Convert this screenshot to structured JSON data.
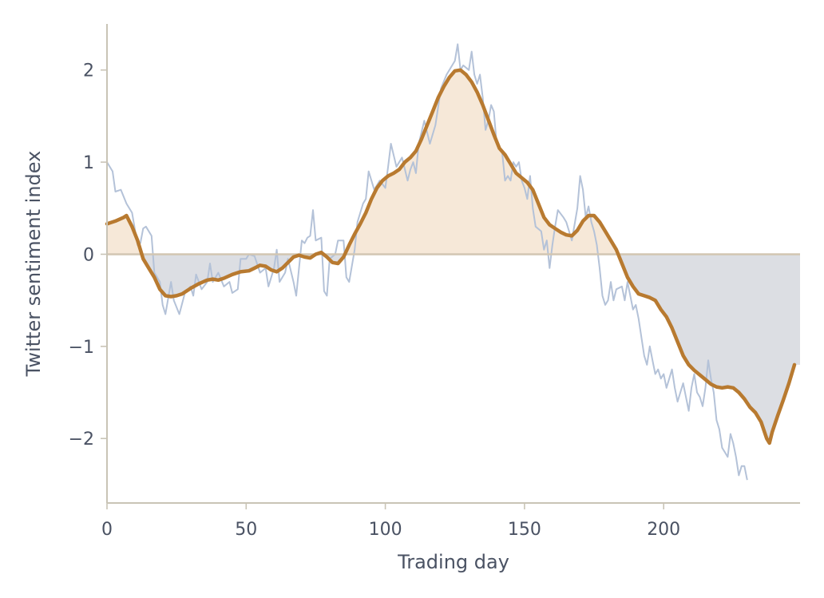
{
  "chart_data": {
    "type": "line",
    "title": "",
    "xlabel": "Trading day",
    "ylabel": "Twitter sentiment index",
    "xlim": [
      0,
      249
    ],
    "ylim": [
      -2.7,
      2.5
    ],
    "xticks": [
      0,
      50,
      100,
      150,
      200
    ],
    "yticks": [
      -2,
      -1,
      0,
      1,
      2
    ],
    "ytick_labels": [
      "−2",
      "−1",
      "0",
      "1",
      "2"
    ],
    "grid": false,
    "legend": "none",
    "baseline": 0,
    "colors": {
      "raw": "#b4c2d8",
      "smoothed": "#b87a30",
      "fill_positive": "#f6e8d8",
      "fill_negative": "#dcdee3",
      "baseline": "#d2c6b2",
      "axis": "#c9c4b6",
      "text": "#4a5263"
    },
    "series": [
      {
        "role": "raw",
        "points": [
          [
            0,
            1.0
          ],
          [
            2,
            0.9
          ],
          [
            3,
            0.68
          ],
          [
            5,
            0.7
          ],
          [
            7,
            0.55
          ],
          [
            9,
            0.45
          ],
          [
            11,
            0.1
          ],
          [
            12,
            0.12
          ],
          [
            13,
            0.28
          ],
          [
            14,
            0.3
          ],
          [
            16,
            0.2
          ],
          [
            17,
            -0.2
          ],
          [
            19,
            -0.3
          ],
          [
            20,
            -0.55
          ],
          [
            21,
            -0.65
          ],
          [
            23,
            -0.3
          ],
          [
            24,
            -0.5
          ],
          [
            26,
            -0.65
          ],
          [
            28,
            -0.42
          ],
          [
            30,
            -0.35
          ],
          [
            31,
            -0.45
          ],
          [
            32,
            -0.22
          ],
          [
            34,
            -0.38
          ],
          [
            36,
            -0.3
          ],
          [
            37,
            -0.1
          ],
          [
            38,
            -0.3
          ],
          [
            40,
            -0.2
          ],
          [
            42,
            -0.35
          ],
          [
            44,
            -0.3
          ],
          [
            45,
            -0.42
          ],
          [
            47,
            -0.38
          ],
          [
            48,
            -0.05
          ],
          [
            50,
            -0.05
          ],
          [
            51,
            0.0
          ],
          [
            53,
            -0.02
          ],
          [
            55,
            -0.2
          ],
          [
            57,
            -0.15
          ],
          [
            58,
            -0.35
          ],
          [
            60,
            -0.15
          ],
          [
            61,
            0.05
          ],
          [
            62,
            -0.3
          ],
          [
            64,
            -0.2
          ],
          [
            65,
            -0.05
          ],
          [
            67,
            -0.3
          ],
          [
            68,
            -0.45
          ],
          [
            70,
            0.15
          ],
          [
            71,
            0.12
          ],
          [
            72,
            0.18
          ],
          [
            73,
            0.2
          ],
          [
            74,
            0.48
          ],
          [
            75,
            0.15
          ],
          [
            77,
            0.18
          ],
          [
            78,
            -0.4
          ],
          [
            79,
            -0.45
          ],
          [
            80,
            -0.05
          ],
          [
            82,
            0.0
          ],
          [
            83,
            0.15
          ],
          [
            85,
            0.15
          ],
          [
            86,
            -0.25
          ],
          [
            87,
            -0.3
          ],
          [
            89,
            0.05
          ],
          [
            90,
            0.35
          ],
          [
            92,
            0.55
          ],
          [
            93,
            0.6
          ],
          [
            94,
            0.9
          ],
          [
            96,
            0.7
          ],
          [
            98,
            0.8
          ],
          [
            100,
            0.72
          ],
          [
            101,
            0.95
          ],
          [
            102,
            1.2
          ],
          [
            104,
            0.95
          ],
          [
            106,
            1.05
          ],
          [
            108,
            0.8
          ],
          [
            109,
            0.92
          ],
          [
            110,
            1.0
          ],
          [
            111,
            0.88
          ],
          [
            112,
            1.2
          ],
          [
            114,
            1.45
          ],
          [
            116,
            1.2
          ],
          [
            118,
            1.4
          ],
          [
            120,
            1.8
          ],
          [
            122,
            1.95
          ],
          [
            124,
            2.05
          ],
          [
            125,
            2.1
          ],
          [
            126,
            2.28
          ],
          [
            127,
            2.0
          ],
          [
            128,
            2.05
          ],
          [
            130,
            2.0
          ],
          [
            131,
            2.2
          ],
          [
            132,
            1.95
          ],
          [
            133,
            1.85
          ],
          [
            134,
            1.95
          ],
          [
            135,
            1.7
          ],
          [
            136,
            1.35
          ],
          [
            137,
            1.45
          ],
          [
            138,
            1.62
          ],
          [
            139,
            1.55
          ],
          [
            140,
            1.2
          ],
          [
            141,
            1.15
          ],
          [
            142,
            1.1
          ],
          [
            143,
            0.8
          ],
          [
            144,
            0.85
          ],
          [
            145,
            0.8
          ],
          [
            146,
            1.0
          ],
          [
            147,
            0.95
          ],
          [
            148,
            1.0
          ],
          [
            149,
            0.8
          ],
          [
            150,
            0.72
          ],
          [
            151,
            0.6
          ],
          [
            152,
            0.85
          ],
          [
            153,
            0.5
          ],
          [
            154,
            0.3
          ],
          [
            156,
            0.25
          ],
          [
            157,
            0.05
          ],
          [
            158,
            0.15
          ],
          [
            159,
            -0.15
          ],
          [
            160,
            0.1
          ],
          [
            161,
            0.3
          ],
          [
            162,
            0.48
          ],
          [
            164,
            0.4
          ],
          [
            165,
            0.35
          ],
          [
            166,
            0.25
          ],
          [
            167,
            0.15
          ],
          [
            169,
            0.5
          ],
          [
            170,
            0.85
          ],
          [
            171,
            0.7
          ],
          [
            172,
            0.4
          ],
          [
            173,
            0.52
          ],
          [
            174,
            0.35
          ],
          [
            175,
            0.25
          ],
          [
            176,
            0.1
          ],
          [
            177,
            -0.15
          ],
          [
            178,
            -0.45
          ],
          [
            179,
            -0.55
          ],
          [
            180,
            -0.5
          ],
          [
            181,
            -0.3
          ],
          [
            182,
            -0.5
          ],
          [
            183,
            -0.38
          ],
          [
            185,
            -0.35
          ],
          [
            186,
            -0.5
          ],
          [
            187,
            -0.3
          ],
          [
            188,
            -0.45
          ],
          [
            189,
            -0.6
          ],
          [
            190,
            -0.55
          ],
          [
            191,
            -0.7
          ],
          [
            192,
            -0.9
          ],
          [
            193,
            -1.1
          ],
          [
            194,
            -1.2
          ],
          [
            195,
            -1.0
          ],
          [
            196,
            -1.15
          ],
          [
            197,
            -1.3
          ],
          [
            198,
            -1.25
          ],
          [
            199,
            -1.35
          ],
          [
            200,
            -1.3
          ],
          [
            201,
            -1.45
          ],
          [
            202,
            -1.35
          ],
          [
            203,
            -1.25
          ],
          [
            204,
            -1.45
          ],
          [
            205,
            -1.6
          ],
          [
            206,
            -1.5
          ],
          [
            207,
            -1.4
          ],
          [
            208,
            -1.55
          ],
          [
            209,
            -1.7
          ],
          [
            210,
            -1.45
          ],
          [
            211,
            -1.3
          ],
          [
            212,
            -1.5
          ],
          [
            213,
            -1.55
          ],
          [
            214,
            -1.65
          ],
          [
            215,
            -1.45
          ],
          [
            216,
            -1.15
          ],
          [
            217,
            -1.35
          ],
          [
            218,
            -1.5
          ],
          [
            219,
            -1.8
          ],
          [
            220,
            -1.9
          ],
          [
            221,
            -2.1
          ],
          [
            222,
            -2.15
          ],
          [
            223,
            -2.2
          ],
          [
            224,
            -1.95
          ],
          [
            225,
            -2.05
          ],
          [
            226,
            -2.2
          ],
          [
            227,
            -2.4
          ],
          [
            228,
            -2.3
          ],
          [
            229,
            -2.3
          ],
          [
            230,
            -2.45
          ]
        ]
      },
      {
        "role": "smoothed",
        "points": [
          [
            0,
            0.33
          ],
          [
            3,
            0.36
          ],
          [
            6,
            0.4
          ],
          [
            7,
            0.42
          ],
          [
            9,
            0.3
          ],
          [
            11,
            0.15
          ],
          [
            13,
            -0.05
          ],
          [
            15,
            -0.15
          ],
          [
            17,
            -0.25
          ],
          [
            19,
            -0.38
          ],
          [
            21,
            -0.45
          ],
          [
            23,
            -0.46
          ],
          [
            25,
            -0.45
          ],
          [
            27,
            -0.43
          ],
          [
            30,
            -0.37
          ],
          [
            33,
            -0.32
          ],
          [
            36,
            -0.28
          ],
          [
            38,
            -0.27
          ],
          [
            40,
            -0.28
          ],
          [
            42,
            -0.26
          ],
          [
            45,
            -0.22
          ],
          [
            48,
            -0.19
          ],
          [
            51,
            -0.18
          ],
          [
            53,
            -0.15
          ],
          [
            55,
            -0.12
          ],
          [
            57,
            -0.13
          ],
          [
            59,
            -0.17
          ],
          [
            61,
            -0.19
          ],
          [
            63,
            -0.15
          ],
          [
            65,
            -0.09
          ],
          [
            67,
            -0.03
          ],
          [
            69,
            -0.01
          ],
          [
            71,
            -0.03
          ],
          [
            73,
            -0.04
          ],
          [
            75,
            0.0
          ],
          [
            77,
            0.02
          ],
          [
            79,
            -0.03
          ],
          [
            81,
            -0.09
          ],
          [
            83,
            -0.1
          ],
          [
            85,
            -0.03
          ],
          [
            87,
            0.1
          ],
          [
            89,
            0.22
          ],
          [
            91,
            0.33
          ],
          [
            93,
            0.45
          ],
          [
            95,
            0.6
          ],
          [
            97,
            0.72
          ],
          [
            99,
            0.8
          ],
          [
            101,
            0.85
          ],
          [
            103,
            0.88
          ],
          [
            105,
            0.92
          ],
          [
            107,
            1.0
          ],
          [
            109,
            1.05
          ],
          [
            111,
            1.12
          ],
          [
            113,
            1.25
          ],
          [
            115,
            1.4
          ],
          [
            117,
            1.55
          ],
          [
            119,
            1.7
          ],
          [
            121,
            1.82
          ],
          [
            123,
            1.92
          ],
          [
            125,
            1.99
          ],
          [
            127,
            2.0
          ],
          [
            129,
            1.95
          ],
          [
            131,
            1.87
          ],
          [
            133,
            1.76
          ],
          [
            135,
            1.62
          ],
          [
            137,
            1.46
          ],
          [
            139,
            1.3
          ],
          [
            141,
            1.15
          ],
          [
            143,
            1.08
          ],
          [
            145,
            0.98
          ],
          [
            147,
            0.88
          ],
          [
            149,
            0.83
          ],
          [
            151,
            0.78
          ],
          [
            153,
            0.7
          ],
          [
            155,
            0.55
          ],
          [
            157,
            0.4
          ],
          [
            159,
            0.32
          ],
          [
            161,
            0.28
          ],
          [
            163,
            0.24
          ],
          [
            165,
            0.21
          ],
          [
            167,
            0.2
          ],
          [
            169,
            0.26
          ],
          [
            171,
            0.36
          ],
          [
            173,
            0.42
          ],
          [
            175,
            0.42
          ],
          [
            177,
            0.35
          ],
          [
            179,
            0.25
          ],
          [
            181,
            0.15
          ],
          [
            183,
            0.05
          ],
          [
            185,
            -0.1
          ],
          [
            187,
            -0.25
          ],
          [
            189,
            -0.35
          ],
          [
            191,
            -0.43
          ],
          [
            193,
            -0.45
          ],
          [
            195,
            -0.47
          ],
          [
            197,
            -0.5
          ],
          [
            199,
            -0.6
          ],
          [
            201,
            -0.68
          ],
          [
            203,
            -0.8
          ],
          [
            205,
            -0.95
          ],
          [
            207,
            -1.1
          ],
          [
            209,
            -1.2
          ],
          [
            211,
            -1.26
          ],
          [
            213,
            -1.31
          ],
          [
            215,
            -1.36
          ],
          [
            217,
            -1.41
          ],
          [
            219,
            -1.44
          ],
          [
            221,
            -1.45
          ],
          [
            223,
            -1.44
          ],
          [
            225,
            -1.45
          ],
          [
            227,
            -1.5
          ],
          [
            229,
            -1.57
          ],
          [
            231,
            -1.66
          ],
          [
            233,
            -1.72
          ],
          [
            235,
            -1.82
          ],
          [
            237,
            -2.0
          ],
          [
            238,
            -2.05
          ],
          [
            239,
            -1.93
          ],
          [
            241,
            -1.75
          ],
          [
            243,
            -1.58
          ],
          [
            245,
            -1.4
          ],
          [
            247,
            -1.2
          ]
        ]
      }
    ]
  }
}
